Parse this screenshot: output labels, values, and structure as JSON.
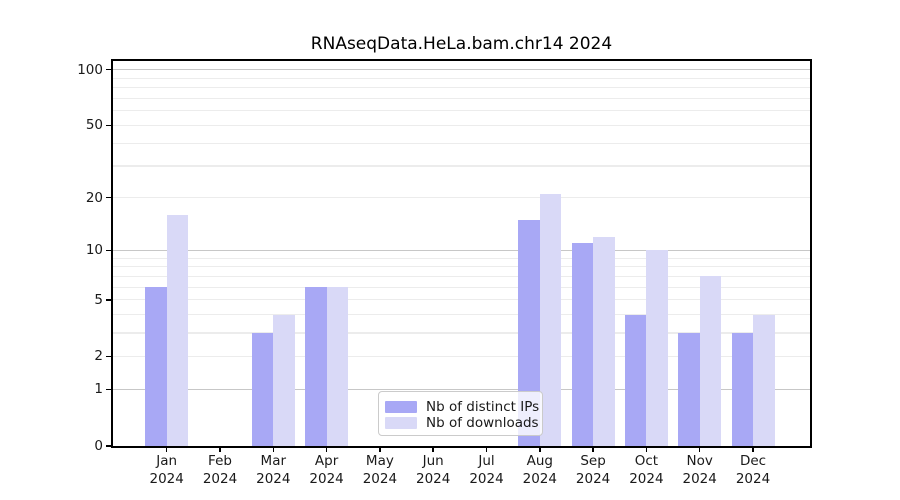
{
  "chart_data": {
    "type": "bar",
    "title": "RNAseqData.HeLa.bam.chr14 2024",
    "yscale": "log1p",
    "ylim": [
      0,
      110
    ],
    "grid": true,
    "legend_position": "bottom-center-inside",
    "x_ticks": [
      {
        "month": "Jan",
        "year": "2024"
      },
      {
        "month": "Feb",
        "year": "2024"
      },
      {
        "month": "Mar",
        "year": "2024"
      },
      {
        "month": "Apr",
        "year": "2024"
      },
      {
        "month": "May",
        "year": "2024"
      },
      {
        "month": "Jun",
        "year": "2024"
      },
      {
        "month": "Jul",
        "year": "2024"
      },
      {
        "month": "Aug",
        "year": "2024"
      },
      {
        "month": "Sep",
        "year": "2024"
      },
      {
        "month": "Oct",
        "year": "2024"
      },
      {
        "month": "Nov",
        "year": "2024"
      },
      {
        "month": "Dec",
        "year": "2024"
      }
    ],
    "y_ticks": [
      0,
      1,
      2,
      5,
      10,
      20,
      50,
      100
    ],
    "y_gridlines_major": [
      1,
      10,
      100
    ],
    "y_gridlines_minor": [
      2,
      3,
      4,
      5,
      6,
      7,
      8,
      9,
      20,
      30,
      40,
      50,
      60,
      70,
      80,
      90
    ],
    "series": [
      {
        "name": "Nb of distinct IPs",
        "color": "#a8a8f5",
        "values": [
          6,
          0,
          3,
          6,
          0,
          0,
          0,
          15,
          11,
          4,
          3,
          3
        ]
      },
      {
        "name": "Nb of downloads",
        "color": "#d9d9f7",
        "values": [
          16,
          0,
          4,
          6,
          0,
          0,
          0,
          21,
          12,
          10,
          7,
          4
        ]
      }
    ],
    "colors": {
      "spine": "#000000",
      "gridline_major": "#c7c7c7",
      "gridline_minor": "#ececec",
      "legend_border": "#cbcbcb"
    }
  }
}
